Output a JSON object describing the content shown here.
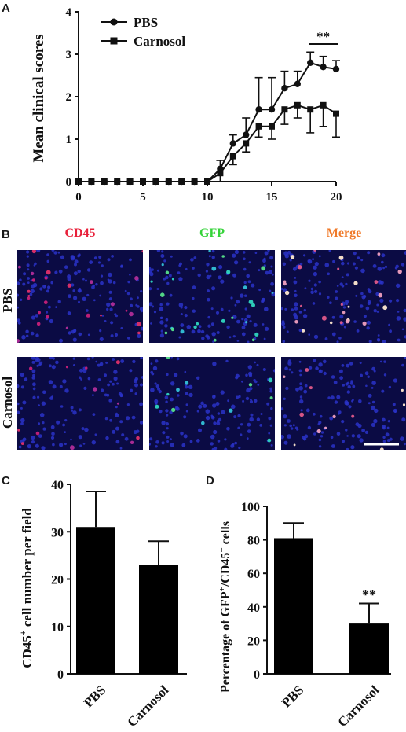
{
  "panels": {
    "a": "A",
    "b": "B",
    "c": "C",
    "d": "D"
  },
  "panel_b": {
    "columns": [
      "CD45",
      "GFP",
      "Merge"
    ],
    "column_colors": [
      "#e8203a",
      "#36d33a",
      "#f07a2a"
    ],
    "rows": [
      "PBS",
      "Carnosol"
    ]
  },
  "chart_data": [
    {
      "type": "line",
      "ylabel": "Mean clinical scores",
      "xlim": [
        0,
        20
      ],
      "ylim": [
        0,
        4
      ],
      "xticks": [
        0,
        5,
        10,
        15,
        20
      ],
      "yticks": [
        0,
        1,
        2,
        3,
        4
      ],
      "legend_position": "top-left",
      "annotation": "**",
      "series": [
        {
          "name": "PBS",
          "marker": "circle",
          "x": [
            0,
            1,
            2,
            3,
            4,
            5,
            6,
            7,
            8,
            9,
            10,
            11,
            12,
            13,
            14,
            15,
            16,
            17,
            18,
            19,
            20
          ],
          "y": [
            0,
            0,
            0,
            0,
            0,
            0,
            0,
            0,
            0,
            0,
            0,
            0.3,
            0.9,
            1.1,
            1.7,
            1.7,
            2.2,
            2.3,
            2.8,
            2.7,
            2.65
          ],
          "error": [
            0,
            0,
            0,
            0,
            0,
            0,
            0,
            0,
            0,
            0,
            0,
            0.2,
            0.2,
            0.4,
            0.75,
            0.75,
            0.4,
            0.3,
            0.25,
            0.25,
            0.2
          ]
        },
        {
          "name": "Carnosol",
          "marker": "square",
          "x": [
            0,
            1,
            2,
            3,
            4,
            5,
            6,
            7,
            8,
            9,
            10,
            11,
            12,
            13,
            14,
            15,
            16,
            17,
            18,
            19,
            20
          ],
          "y": [
            0,
            0,
            0,
            0,
            0,
            0,
            0,
            0,
            0,
            0,
            0,
            0.2,
            0.6,
            0.9,
            1.3,
            1.3,
            1.7,
            1.8,
            1.7,
            1.8,
            1.6
          ],
          "error": [
            0,
            0,
            0,
            0,
            0,
            0,
            0,
            0,
            0,
            0,
            0,
            0.2,
            0.2,
            0.2,
            0.25,
            0.3,
            0.35,
            0.3,
            0.55,
            0.5,
            0.55
          ]
        }
      ]
    },
    {
      "type": "bar",
      "ylabel": "CD45+ cell number per field",
      "ylabel_main": "CD45",
      "ylabel_sup": "+",
      "ylabel_rest": " cell number per field",
      "categories": [
        "PBS",
        "Carnosol"
      ],
      "values": [
        31,
        23
      ],
      "errors": [
        7.5,
        5
      ],
      "ylim": [
        0,
        40
      ],
      "yticks": [
        0,
        10,
        20,
        30,
        40
      ]
    },
    {
      "type": "bar",
      "ylabel": "Percentage of GFP+/CD45+ cells",
      "ylabel_parts": [
        "Percentage of GFP",
        "+",
        "/CD45",
        "+",
        " cells"
      ],
      "categories": [
        "PBS",
        "Carnosol"
      ],
      "values": [
        81,
        30
      ],
      "errors": [
        9,
        12
      ],
      "annotations": [
        "",
        "**"
      ],
      "ylim": [
        0,
        100
      ],
      "yticks": [
        0,
        20,
        40,
        60,
        80,
        100
      ]
    }
  ]
}
